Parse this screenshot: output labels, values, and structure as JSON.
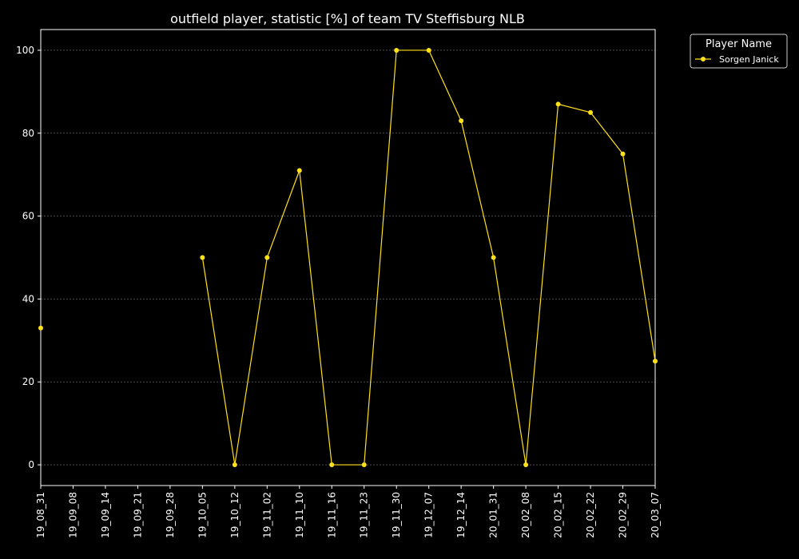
{
  "chart_data": {
    "type": "line",
    "title": "outfield player, statistic [%] of team TV Steffisburg NLB",
    "xlabel": "",
    "ylabel": "",
    "categories": [
      "19_08_31",
      "19_09_08",
      "19_09_14",
      "19_09_21",
      "19_09_28",
      "19_10_05",
      "19_10_12",
      "19_11_02",
      "19_11_10",
      "19_11_16",
      "19_11_23",
      "19_11_30",
      "19_12_07",
      "19_12_14",
      "20_01_31",
      "20_02_08",
      "20_02_15",
      "20_02_22",
      "20_02_29",
      "20_03_07"
    ],
    "ylim": [
      -5,
      105
    ],
    "yticks": [
      0,
      20,
      40,
      60,
      80,
      100
    ],
    "grid": "horizontal dashed",
    "legend": {
      "title": "Player Name",
      "placement": "outside top-right"
    },
    "series": [
      {
        "name": "Sorgen Janick",
        "color": "#ffe11a",
        "values": [
          33,
          null,
          null,
          null,
          null,
          50,
          0,
          50,
          71,
          0,
          0,
          100,
          100,
          83,
          50,
          0,
          87,
          85,
          75,
          25
        ]
      }
    ]
  }
}
